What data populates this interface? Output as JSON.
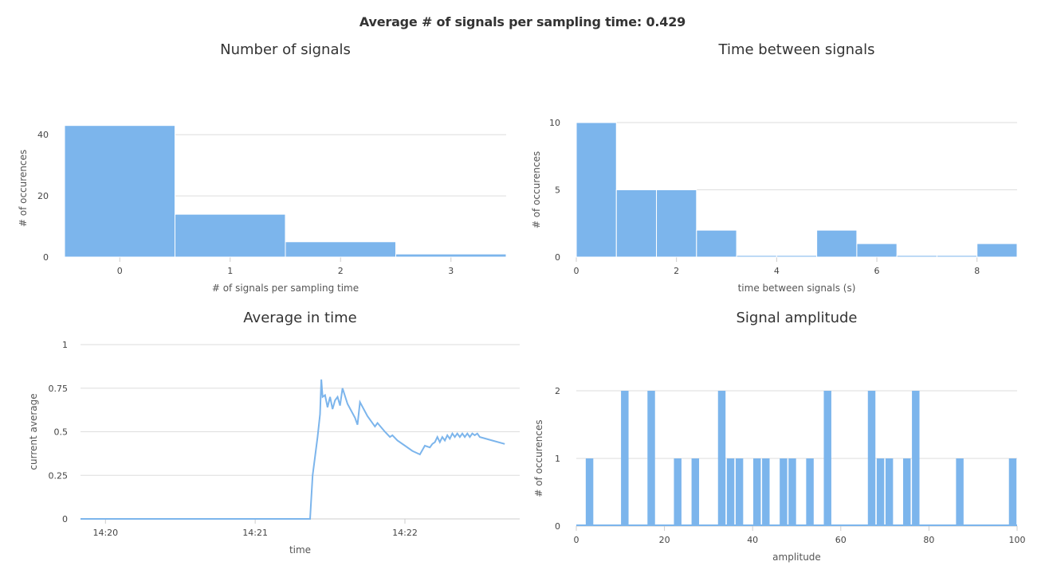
{
  "header": {
    "title": "Average # of signals per sampling time: 0.429"
  },
  "colors": {
    "series": "#7cb5ec",
    "grid": "#dddddd"
  },
  "chart_data": [
    {
      "id": "num-signals",
      "type": "bar",
      "title": "Number of signals",
      "xlabel": "# of signals per sampling time",
      "ylabel": "# of occurences",
      "xlim": [
        -0.5,
        3.5
      ],
      "ylim": [
        0,
        45
      ],
      "xticks": [
        0,
        1,
        2,
        3
      ],
      "yticks": [
        0,
        20,
        40
      ],
      "bins": [
        {
          "x0": -0.5,
          "x1": 0.5,
          "value": 43
        },
        {
          "x0": 0.5,
          "x1": 1.5,
          "value": 14
        },
        {
          "x0": 1.5,
          "x1": 2.5,
          "value": 5
        },
        {
          "x0": 2.5,
          "x1": 3.5,
          "value": 1
        }
      ],
      "grid": true
    },
    {
      "id": "time-between",
      "type": "bar",
      "title": "Time between signals",
      "xlabel": "time between signals (s)",
      "ylabel": "# of occurences",
      "xlim": [
        0,
        8.8
      ],
      "ylim": [
        0,
        10
      ],
      "xticks": [
        0,
        2,
        4,
        6,
        8
      ],
      "yticks": [
        0,
        5,
        10
      ],
      "bins": [
        {
          "x0": 0.0,
          "x1": 0.8,
          "value": 10
        },
        {
          "x0": 0.8,
          "x1": 1.6,
          "value": 5
        },
        {
          "x0": 1.6,
          "x1": 2.4,
          "value": 5
        },
        {
          "x0": 2.4,
          "x1": 3.2,
          "value": 2
        },
        {
          "x0": 3.2,
          "x1": 4.0,
          "value": 0
        },
        {
          "x0": 4.0,
          "x1": 4.8,
          "value": 0
        },
        {
          "x0": 4.8,
          "x1": 5.6,
          "value": 2
        },
        {
          "x0": 5.6,
          "x1": 6.4,
          "value": 1
        },
        {
          "x0": 6.4,
          "x1": 7.2,
          "value": 0
        },
        {
          "x0": 7.2,
          "x1": 8.0,
          "value": 0
        },
        {
          "x0": 8.0,
          "x1": 8.8,
          "value": 1
        }
      ],
      "grid": true
    },
    {
      "id": "avg-time",
      "type": "line",
      "title": "Average in time",
      "xlabel": "time",
      "ylabel": "current average",
      "xlim": [
        "14:19:50",
        "14:22:46"
      ],
      "ylim": [
        0,
        1
      ],
      "xticks": [
        "14:20",
        "14:21",
        "14:22"
      ],
      "yticks": [
        "0",
        "0.25",
        "0.5",
        "0.75",
        "1"
      ],
      "x_tick_times": [
        "14:20:00",
        "14:21:00",
        "14:22:00"
      ],
      "points": [
        [
          "14:19:50",
          0.0
        ],
        [
          "14:21:20",
          0.0
        ],
        [
          "14:21:22",
          0.0
        ],
        [
          "14:21:23",
          0.25
        ],
        [
          "14:21:24",
          0.36
        ],
        [
          "14:21:25",
          0.47
        ],
        [
          "14:21:26",
          0.6
        ],
        [
          "14:21:26.5",
          0.8
        ],
        [
          "14:21:27",
          0.7
        ],
        [
          "14:21:28",
          0.71
        ],
        [
          "14:21:29",
          0.64
        ],
        [
          "14:21:30",
          0.7
        ],
        [
          "14:21:31",
          0.63
        ],
        [
          "14:21:32",
          0.68
        ],
        [
          "14:21:33",
          0.7
        ],
        [
          "14:21:34",
          0.65
        ],
        [
          "14:21:35",
          0.75
        ],
        [
          "14:21:37",
          0.66
        ],
        [
          "14:21:40",
          0.58
        ],
        [
          "14:21:41",
          0.54
        ],
        [
          "14:21:42",
          0.67
        ],
        [
          "14:21:45",
          0.59
        ],
        [
          "14:21:48",
          0.53
        ],
        [
          "14:21:49",
          0.55
        ],
        [
          "14:21:52",
          0.5
        ],
        [
          "14:21:54",
          0.47
        ],
        [
          "14:21:55",
          0.48
        ],
        [
          "14:21:57",
          0.45
        ],
        [
          "14:22:00",
          0.42
        ],
        [
          "14:22:03",
          0.39
        ],
        [
          "14:22:06",
          0.37
        ],
        [
          "14:22:08",
          0.42
        ],
        [
          "14:22:10",
          0.41
        ],
        [
          "14:22:11",
          0.43
        ],
        [
          "14:22:12",
          0.44
        ],
        [
          "14:22:13",
          0.47
        ],
        [
          "14:22:14",
          0.44
        ],
        [
          "14:22:15",
          0.47
        ],
        [
          "14:22:16",
          0.45
        ],
        [
          "14:22:17",
          0.48
        ],
        [
          "14:22:18",
          0.46
        ],
        [
          "14:22:19",
          0.49
        ],
        [
          "14:22:20",
          0.47
        ],
        [
          "14:22:21",
          0.49
        ],
        [
          "14:22:22",
          0.47
        ],
        [
          "14:22:23",
          0.49
        ],
        [
          "14:22:24",
          0.47
        ],
        [
          "14:22:25",
          0.49
        ],
        [
          "14:22:26",
          0.47
        ],
        [
          "14:22:27",
          0.49
        ],
        [
          "14:22:28",
          0.48
        ],
        [
          "14:22:29",
          0.49
        ],
        [
          "14:22:30",
          0.47
        ],
        [
          "14:22:35",
          0.45
        ],
        [
          "14:22:40",
          0.43
        ]
      ],
      "grid": true
    },
    {
      "id": "amplitude",
      "type": "bar",
      "title": "Signal amplitude",
      "xlabel": "amplitude",
      "ylabel": "# of occurences",
      "xlim": [
        0,
        100
      ],
      "ylim": [
        0,
        2
      ],
      "xticks": [
        0,
        20,
        40,
        60,
        80,
        100
      ],
      "yticks": [
        0,
        1,
        2
      ],
      "bin_width": 2,
      "bins": [
        {
          "x0": 2,
          "value": 1
        },
        {
          "x0": 10,
          "value": 2
        },
        {
          "x0": 16,
          "value": 2
        },
        {
          "x0": 22,
          "value": 1
        },
        {
          "x0": 26,
          "value": 1
        },
        {
          "x0": 32,
          "value": 2
        },
        {
          "x0": 34,
          "value": 1
        },
        {
          "x0": 36,
          "value": 1
        },
        {
          "x0": 40,
          "value": 1
        },
        {
          "x0": 42,
          "value": 1
        },
        {
          "x0": 46,
          "value": 1
        },
        {
          "x0": 48,
          "value": 1
        },
        {
          "x0": 52,
          "value": 1
        },
        {
          "x0": 56,
          "value": 2
        },
        {
          "x0": 66,
          "value": 2
        },
        {
          "x0": 68,
          "value": 1
        },
        {
          "x0": 70,
          "value": 1
        },
        {
          "x0": 74,
          "value": 1
        },
        {
          "x0": 76,
          "value": 2
        },
        {
          "x0": 86,
          "value": 1
        },
        {
          "x0": 98,
          "value": 1
        }
      ],
      "grid": true
    }
  ]
}
